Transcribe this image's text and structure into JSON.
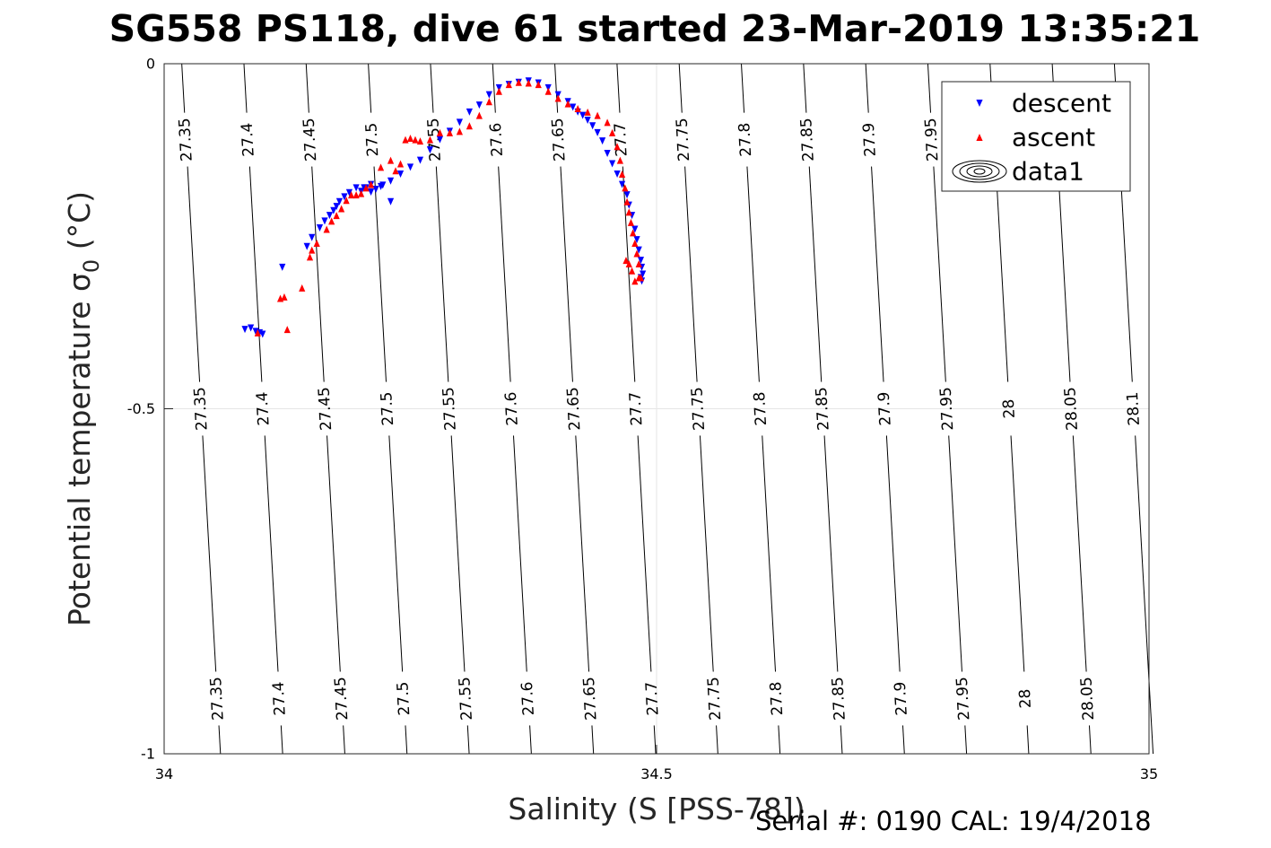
{
  "chart_data": {
    "type": "scatter",
    "title": "SG558 PS118, dive 61 started 23-Mar-2019 13:35:21",
    "xlabel": "Salinity (S [PSS-78])",
    "ylabel": "Potential temperature",
    "ylabel_symbol": "σ",
    "ylabel_sub": "0",
    "ylabel_unit": "(°C)",
    "xlim": [
      34,
      35
    ],
    "ylim": [
      -1,
      0
    ],
    "xticks": [
      "34",
      "34.5",
      "35"
    ],
    "yticks": [
      "0",
      "-0.5",
      "-1"
    ],
    "grid": true,
    "legend_position": "top-right",
    "legend": [
      "descent",
      "ascent",
      "data1"
    ],
    "contour_levels": [
      "27.35",
      "27.4",
      "27.45",
      "27.5",
      "27.55",
      "27.6",
      "27.65",
      "27.7",
      "27.75",
      "27.8",
      "27.85",
      "27.9",
      "27.95",
      "28",
      "28.05",
      "28.1"
    ],
    "series": [
      {
        "name": "descent",
        "color": "#0000ff",
        "marker": "triangle-down",
        "x": [
          34.082,
          34.088,
          34.093,
          34.097,
          34.1,
          34.12,
          34.145,
          34.15,
          34.158,
          34.163,
          34.168,
          34.172,
          34.175,
          34.178,
          34.183,
          34.188,
          34.195,
          34.203,
          34.21,
          34.22,
          34.23,
          34.2,
          34.205,
          34.21,
          34.215,
          34.222,
          34.23,
          34.24,
          34.25,
          34.26,
          34.27,
          34.28,
          34.29,
          34.3,
          34.31,
          34.32,
          34.33,
          34.34,
          34.35,
          34.36,
          34.37,
          34.38,
          34.39,
          34.4,
          34.41,
          34.415,
          34.42,
          34.425,
          34.43,
          34.435,
          34.44,
          34.445,
          34.45,
          34.455,
          34.46,
          34.465,
          34.47,
          34.472,
          34.475,
          34.478,
          34.48,
          34.482,
          34.484,
          34.485,
          34.486,
          34.485,
          34.484
        ],
        "y": [
          -0.385,
          -0.383,
          -0.388,
          -0.39,
          -0.392,
          -0.295,
          -0.265,
          -0.252,
          -0.238,
          -0.228,
          -0.22,
          -0.213,
          -0.207,
          -0.2,
          -0.193,
          -0.187,
          -0.18,
          -0.18,
          -0.175,
          -0.178,
          -0.2,
          -0.185,
          -0.18,
          -0.186,
          -0.182,
          -0.176,
          -0.17,
          -0.16,
          -0.15,
          -0.14,
          -0.125,
          -0.11,
          -0.098,
          -0.085,
          -0.07,
          -0.06,
          -0.045,
          -0.035,
          -0.03,
          -0.027,
          -0.025,
          -0.028,
          -0.035,
          -0.045,
          -0.055,
          -0.063,
          -0.07,
          -0.075,
          -0.082,
          -0.09,
          -0.1,
          -0.112,
          -0.13,
          -0.145,
          -0.16,
          -0.175,
          -0.19,
          -0.205,
          -0.22,
          -0.24,
          -0.255,
          -0.27,
          -0.285,
          -0.295,
          -0.305,
          -0.315,
          -0.31
        ]
      },
      {
        "name": "ascent",
        "color": "#ff0000",
        "marker": "triangle-up",
        "x": [
          34.095,
          34.118,
          34.122,
          34.125,
          34.14,
          34.148,
          34.15,
          34.155,
          34.165,
          34.17,
          34.175,
          34.18,
          34.185,
          34.19,
          34.195,
          34.2,
          34.205,
          34.21,
          34.22,
          34.23,
          34.235,
          34.24,
          34.245,
          34.25,
          34.255,
          34.26,
          34.27,
          34.28,
          34.29,
          34.3,
          34.31,
          34.32,
          34.33,
          34.34,
          34.35,
          34.36,
          34.37,
          34.38,
          34.39,
          34.4,
          34.41,
          34.42,
          34.43,
          34.44,
          34.45,
          34.455,
          34.46,
          34.463,
          34.465,
          34.468,
          34.47,
          34.472,
          34.474,
          34.476,
          34.478,
          34.48,
          34.482,
          34.484,
          34.482,
          34.478,
          34.475,
          34.472,
          34.469
        ],
        "y": [
          -0.39,
          -0.34,
          -0.338,
          -0.385,
          -0.325,
          -0.28,
          -0.27,
          -0.26,
          -0.24,
          -0.228,
          -0.22,
          -0.21,
          -0.198,
          -0.19,
          -0.19,
          -0.188,
          -0.18,
          -0.175,
          -0.15,
          -0.14,
          -0.155,
          -0.145,
          -0.11,
          -0.108,
          -0.11,
          -0.112,
          -0.11,
          -0.1,
          -0.1,
          -0.098,
          -0.09,
          -0.075,
          -0.055,
          -0.04,
          -0.03,
          -0.027,
          -0.028,
          -0.03,
          -0.04,
          -0.05,
          -0.058,
          -0.065,
          -0.07,
          -0.075,
          -0.085,
          -0.1,
          -0.12,
          -0.14,
          -0.16,
          -0.18,
          -0.2,
          -0.215,
          -0.23,
          -0.245,
          -0.26,
          -0.275,
          -0.29,
          -0.31,
          -0.31,
          -0.315,
          -0.3,
          -0.29,
          -0.285
        ]
      }
    ]
  },
  "footer": "Serial #: 0190  CAL: 19/4/2018"
}
